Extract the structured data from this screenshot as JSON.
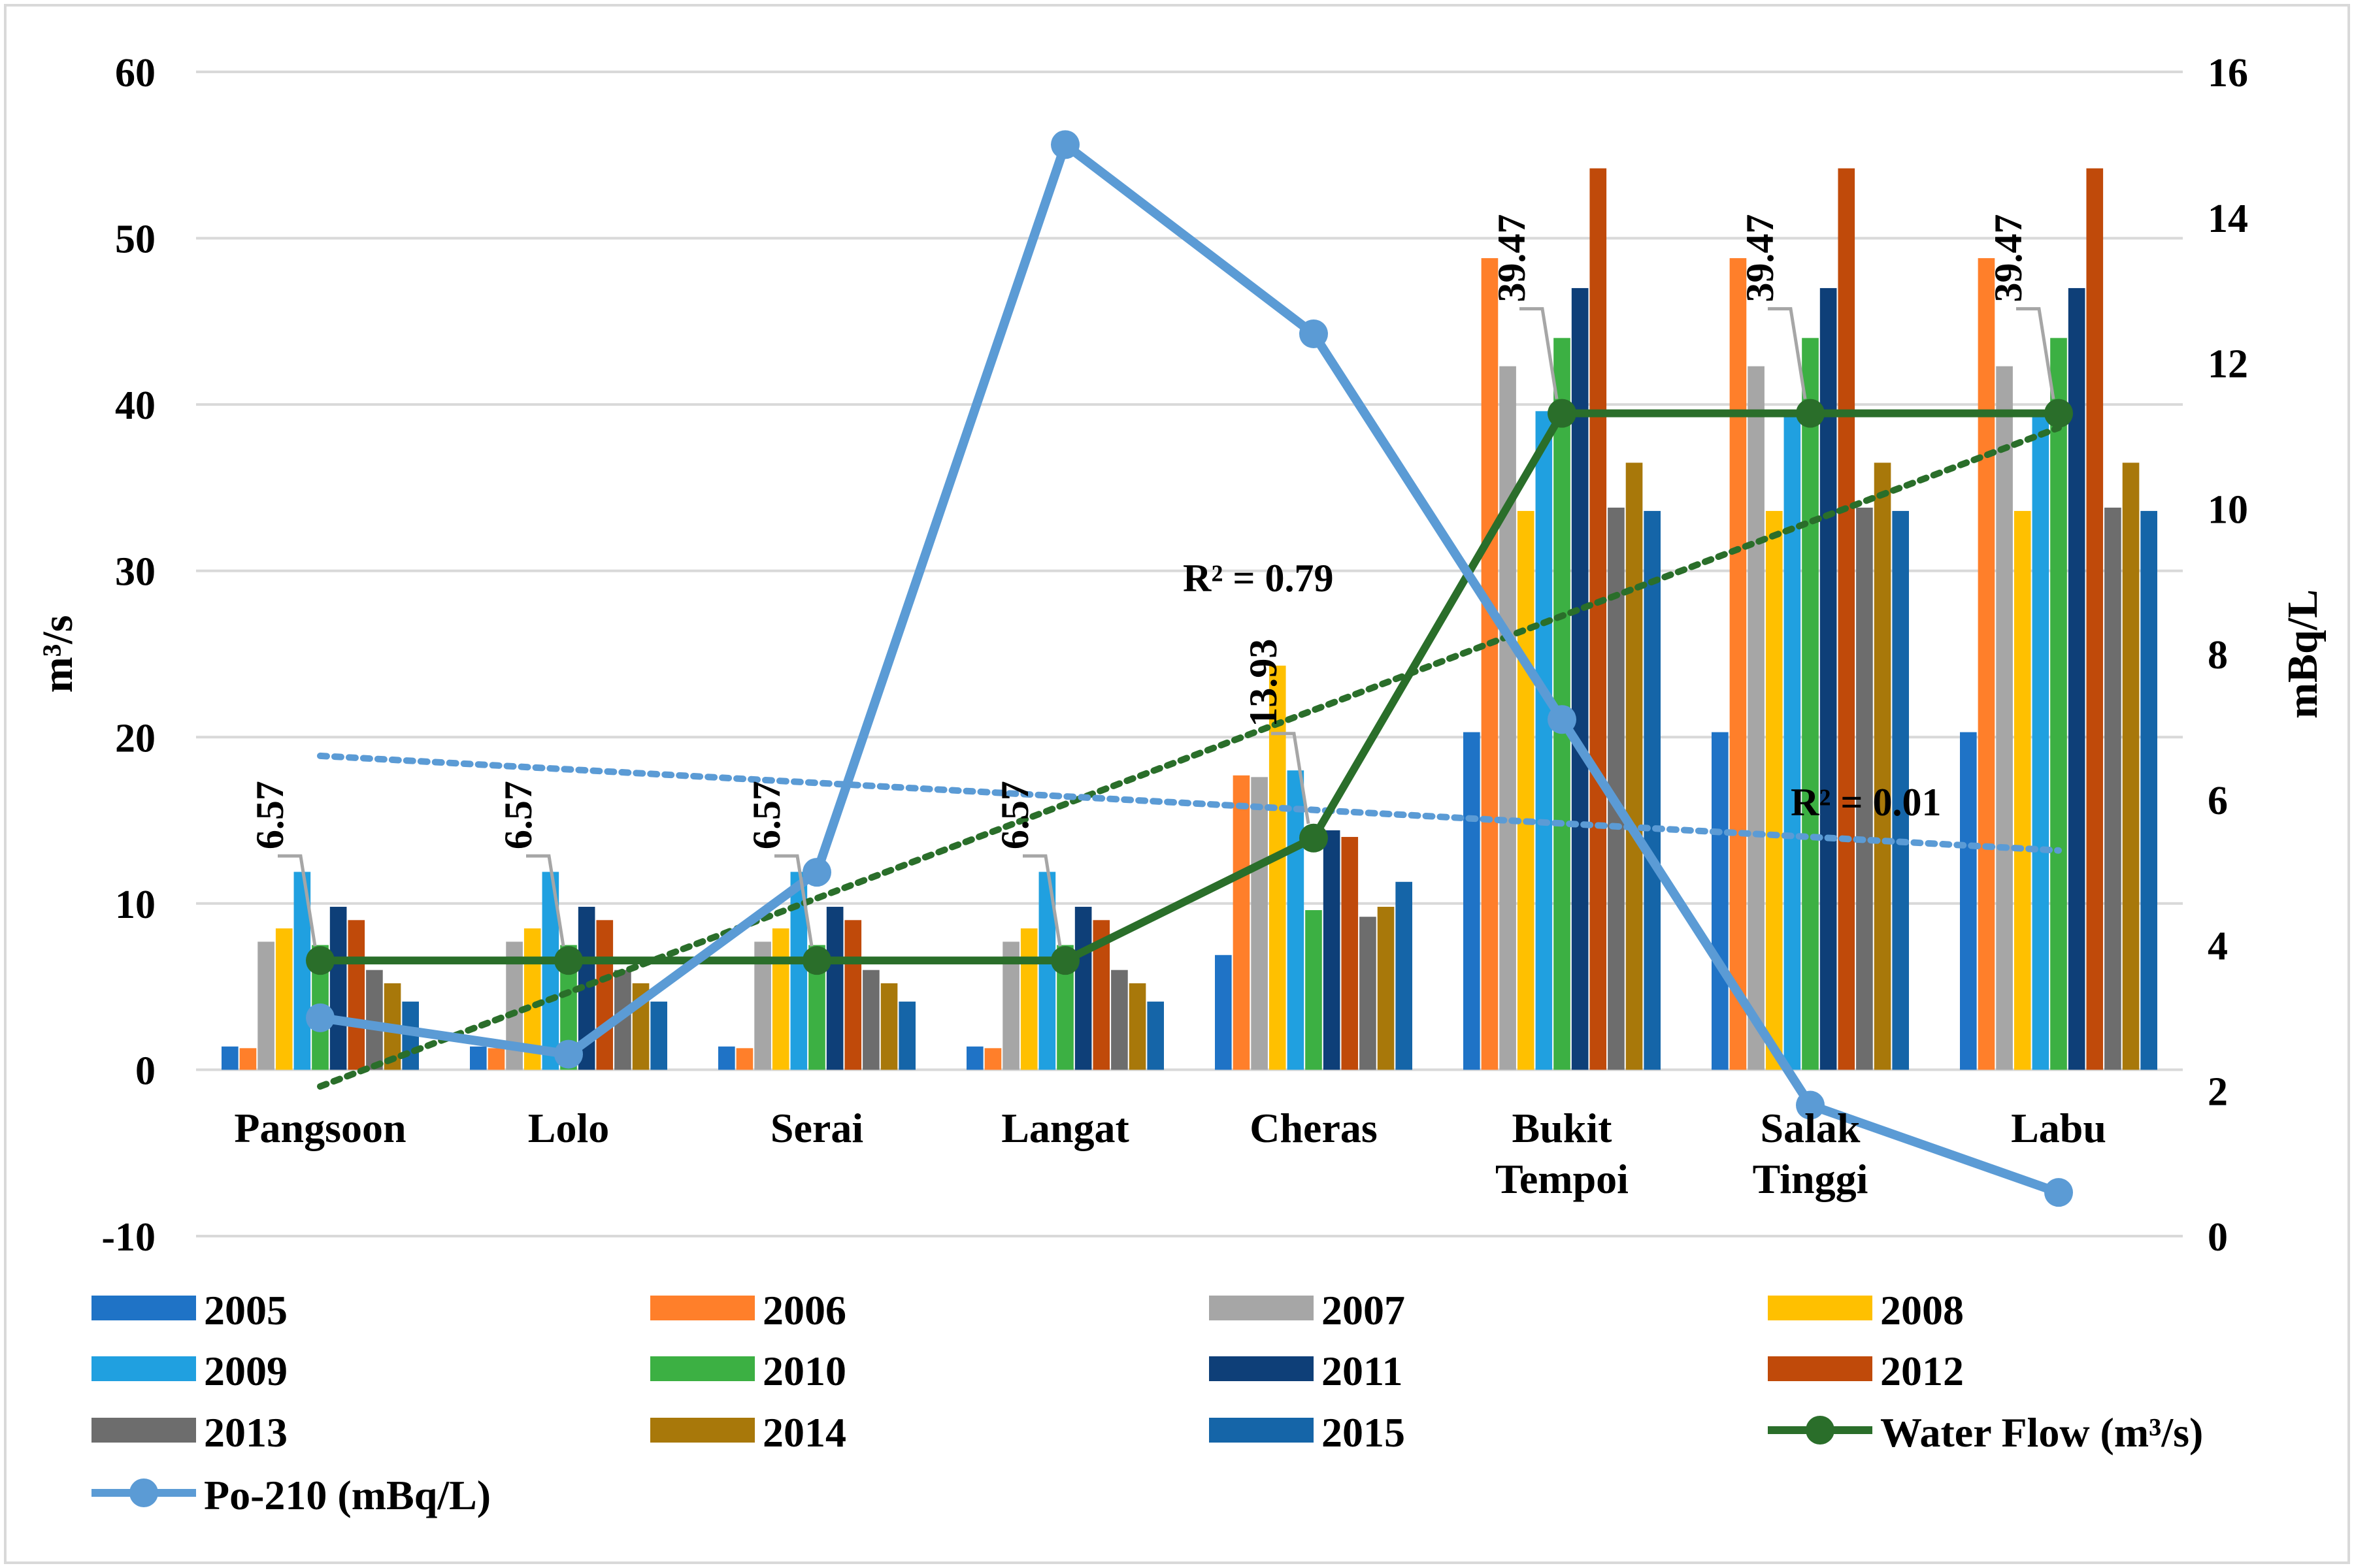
{
  "chart_data": {
    "type": "bar",
    "title": "",
    "categories": [
      [
        "Pangsoon"
      ],
      [
        "Lolo"
      ],
      [
        "Serai"
      ],
      [
        "Langat"
      ],
      [
        "Cheras"
      ],
      [
        "Bukit",
        "Tempoi"
      ],
      [
        "Salak",
        "Tinggi"
      ],
      [
        "Labu"
      ]
    ],
    "ylabel": "m³/s",
    "y2label": "mBq/L",
    "ylim": [
      -10,
      60
    ],
    "y2lim": [
      0,
      16
    ],
    "yticks": [
      "-10",
      "0",
      "10",
      "20",
      "30",
      "40",
      "50",
      "60"
    ],
    "y2ticks": [
      "0",
      "2",
      "4",
      "6",
      "8",
      "10",
      "12",
      "14",
      "16"
    ],
    "grid": true,
    "legend_position": "bottom",
    "bar_series": [
      {
        "name": "2005",
        "color": "#1f73c6",
        "values": [
          1.4,
          1.4,
          1.4,
          1.4,
          6.9,
          20.3,
          20.3,
          20.3
        ]
      },
      {
        "name": "2006",
        "color": "#ff7f2a",
        "values": [
          1.3,
          1.3,
          1.3,
          1.3,
          17.7,
          48.8,
          48.8,
          48.8
        ]
      },
      {
        "name": "2007",
        "color": "#a6a6a6",
        "values": [
          7.7,
          7.7,
          7.7,
          7.7,
          17.6,
          42.3,
          42.3,
          42.3
        ]
      },
      {
        "name": "2008",
        "color": "#ffc000",
        "values": [
          8.5,
          8.5,
          8.5,
          8.5,
          24.3,
          33.6,
          33.6,
          33.6
        ]
      },
      {
        "name": "2009",
        "color": "#20a0e0",
        "values": [
          11.9,
          11.9,
          11.9,
          11.9,
          18.0,
          39.6,
          39.6,
          39.6
        ]
      },
      {
        "name": "2010",
        "color": "#3cb043",
        "values": [
          7.5,
          7.5,
          7.5,
          7.5,
          9.6,
          44.0,
          44.0,
          44.0
        ]
      },
      {
        "name": "2011",
        "color": "#0e3f78",
        "values": [
          9.8,
          9.8,
          9.8,
          9.8,
          14.4,
          47.0,
          47.0,
          47.0
        ]
      },
      {
        "name": "2012",
        "color": "#c04a0a",
        "values": [
          9.0,
          9.0,
          9.0,
          9.0,
          14.0,
          54.2,
          54.2,
          54.2
        ]
      },
      {
        "name": "2013",
        "color": "#6d6d6d",
        "values": [
          6.0,
          6.0,
          6.0,
          6.0,
          9.2,
          33.8,
          33.8,
          33.8
        ]
      },
      {
        "name": "2014",
        "color": "#a8780a",
        "values": [
          5.2,
          5.2,
          5.2,
          5.2,
          9.8,
          36.5,
          36.5,
          36.5
        ]
      },
      {
        "name": "2015",
        "color": "#1565a8",
        "values": [
          4.1,
          4.1,
          4.1,
          4.1,
          11.3,
          33.6,
          33.6,
          33.6
        ]
      }
    ],
    "line_series": [
      {
        "name": "Water Flow (m³/s)",
        "color": "#2a6e2a",
        "axis": "left",
        "values": [
          6.57,
          6.57,
          6.57,
          6.57,
          13.93,
          39.47,
          39.47,
          39.47
        ]
      },
      {
        "name": "Po-210 (mBq/L)",
        "color": "#5b9bd5",
        "axis": "right",
        "values": [
          3.0,
          2.5,
          5.0,
          15.0,
          12.4,
          7.1,
          1.8,
          0.6
        ]
      }
    ],
    "data_labels": [
      "6.57",
      "6.57",
      "6.57",
      "6.57",
      "13.93",
      "39.47",
      "39.47",
      "39.47"
    ],
    "trendlines": [
      {
        "series": "Water Flow (m³/s)",
        "color": "#2a6e2a",
        "label": "R² = 0.79",
        "from": [
          0,
          -1.0
        ],
        "to": [
          7,
          38.6
        ]
      },
      {
        "series": "Po-210 (mBq/L)",
        "color": "#5b9bd5",
        "label": "R² = 0.01",
        "from": [
          0,
          6.6
        ],
        "to": [
          7,
          5.3
        ]
      }
    ]
  }
}
